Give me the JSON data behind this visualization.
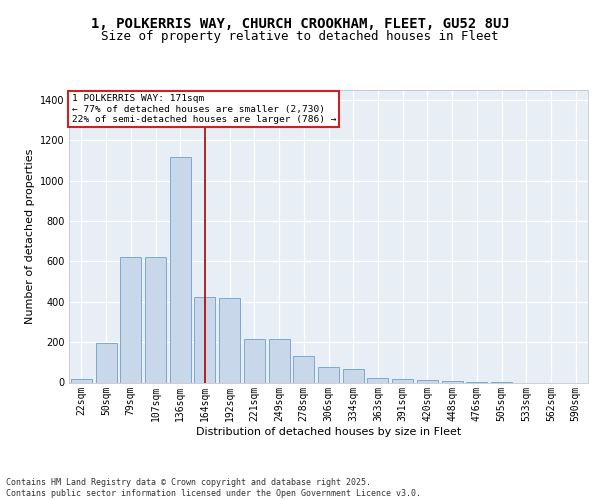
{
  "title_line1": "1, POLKERRIS WAY, CHURCH CROOKHAM, FLEET, GU52 8UJ",
  "title_line2": "Size of property relative to detached houses in Fleet",
  "xlabel": "Distribution of detached houses by size in Fleet",
  "ylabel": "Number of detached properties",
  "categories": [
    "22sqm",
    "50sqm",
    "79sqm",
    "107sqm",
    "136sqm",
    "164sqm",
    "192sqm",
    "221sqm",
    "249sqm",
    "278sqm",
    "306sqm",
    "334sqm",
    "363sqm",
    "391sqm",
    "420sqm",
    "448sqm",
    "476sqm",
    "505sqm",
    "533sqm",
    "562sqm",
    "590sqm"
  ],
  "values": [
    18,
    195,
    620,
    620,
    1120,
    425,
    420,
    215,
    215,
    130,
    75,
    65,
    20,
    15,
    10,
    8,
    3,
    1,
    0,
    0,
    0
  ],
  "bar_color": "#c8d8ea",
  "bar_edgecolor": "#7aaacf",
  "vline_index": 5,
  "vline_color": "#aa0000",
  "annotation_text": "1 POLKERRIS WAY: 171sqm\n← 77% of detached houses are smaller (2,730)\n22% of semi-detached houses are larger (786) →",
  "annotation_box_edgecolor": "#cc2222",
  "ylim": [
    0,
    1450
  ],
  "yticks": [
    0,
    200,
    400,
    600,
    800,
    1000,
    1200,
    1400
  ],
  "bg_color": "#e8eef6",
  "grid_color": "#ffffff",
  "footer_text": "Contains HM Land Registry data © Crown copyright and database right 2025.\nContains public sector information licensed under the Open Government Licence v3.0.",
  "title_fontsize": 10,
  "subtitle_fontsize": 9,
  "axis_label_fontsize": 8,
  "tick_fontsize": 7,
  "footer_fontsize": 6
}
